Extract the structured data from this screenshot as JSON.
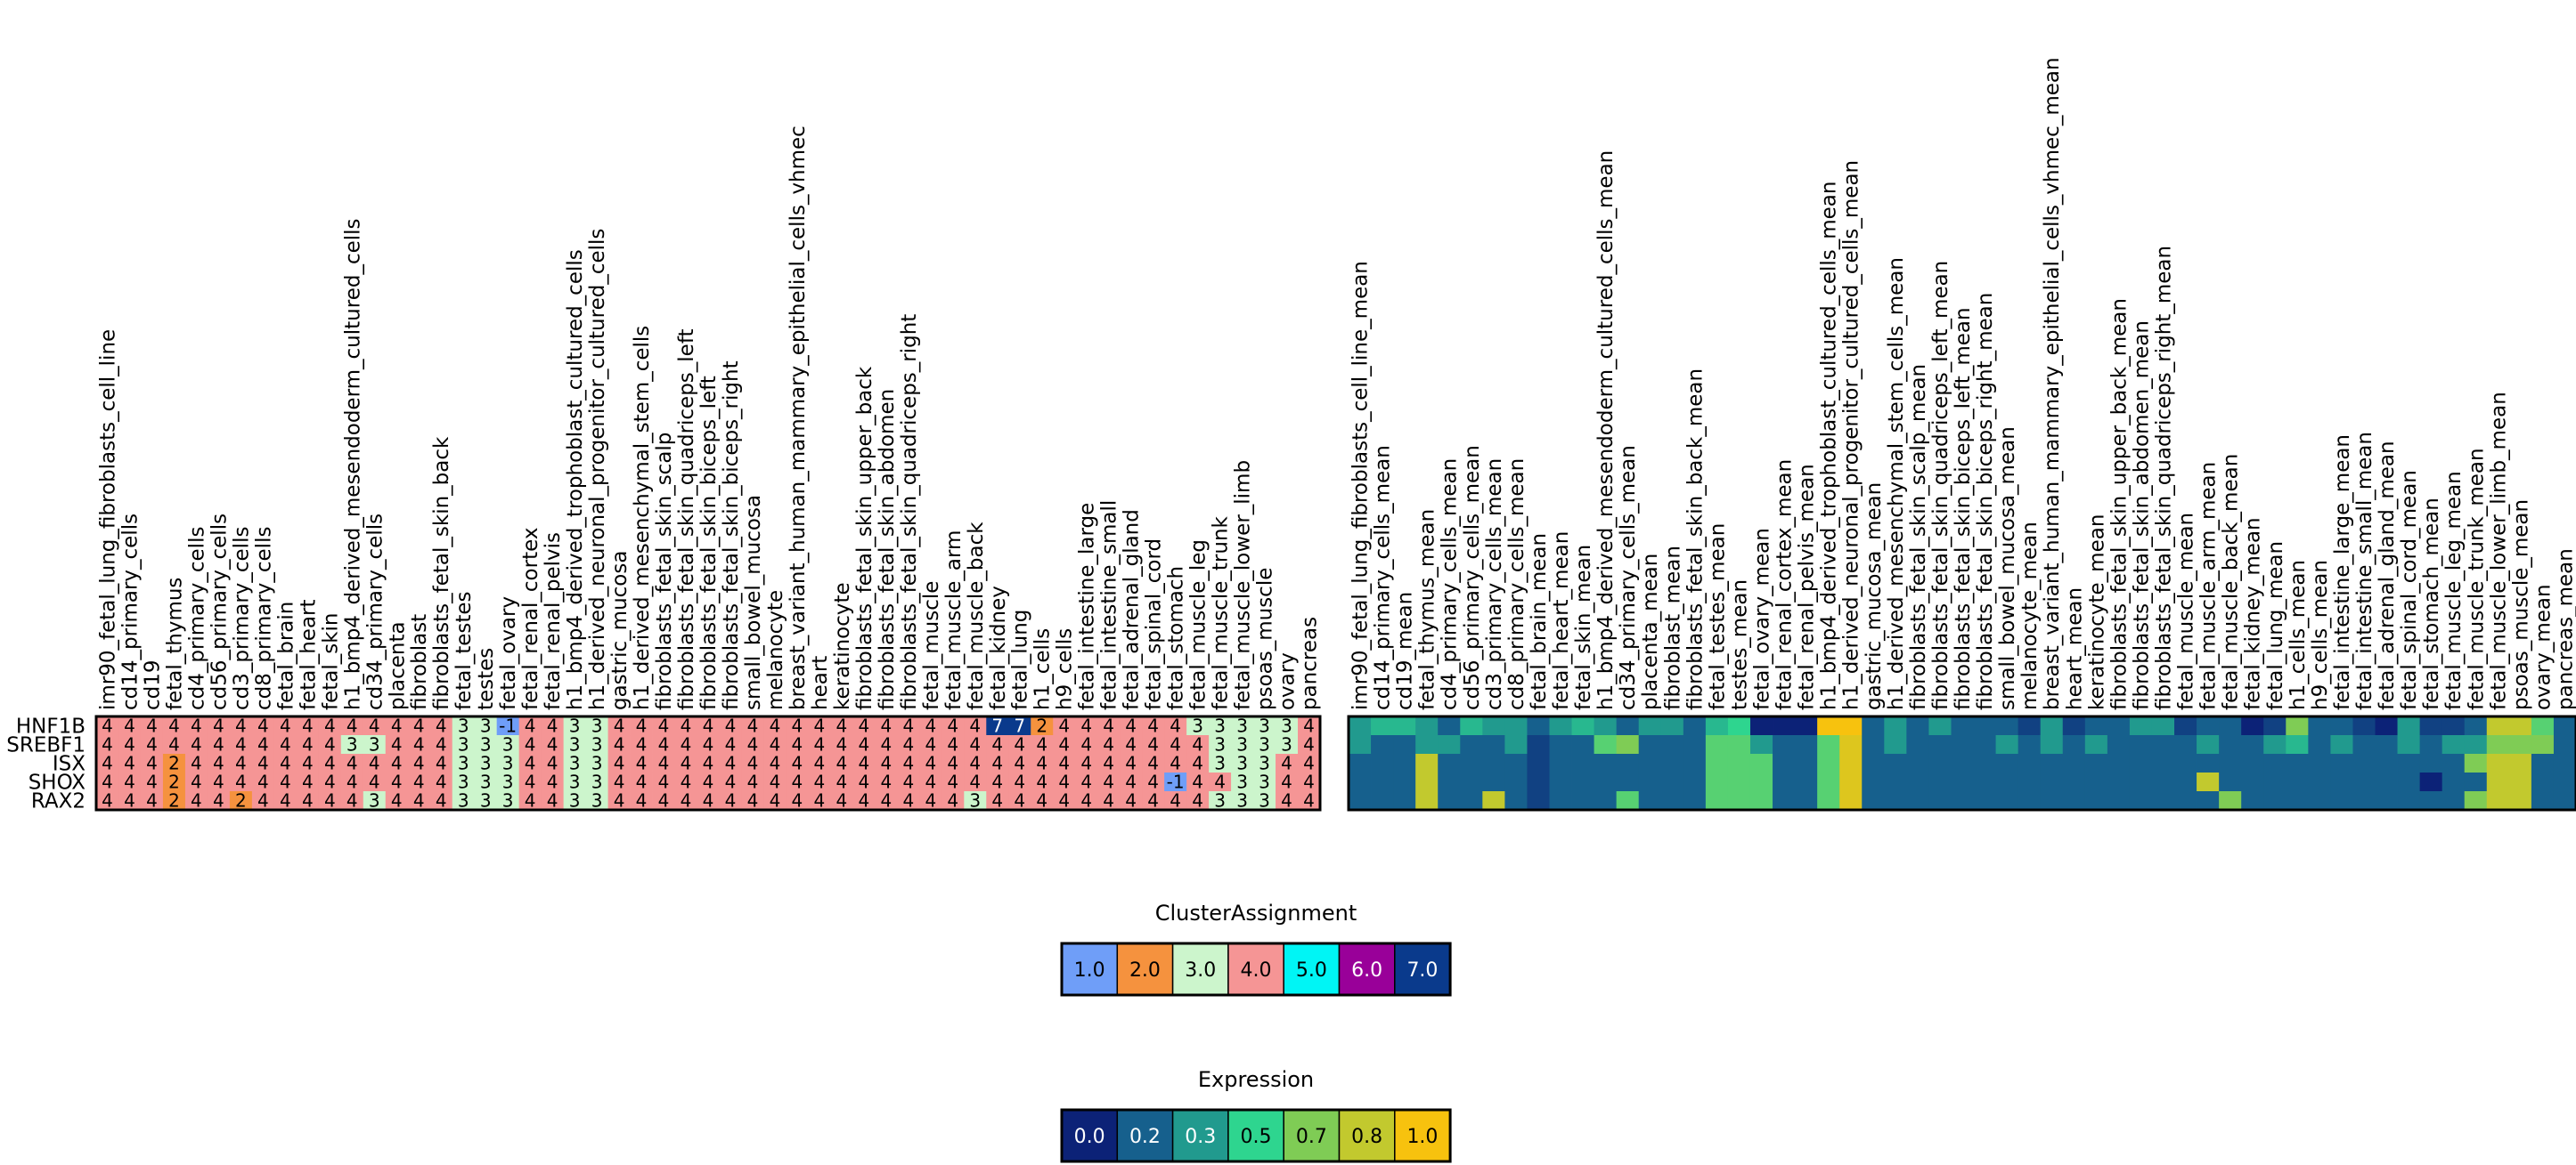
{
  "chart_data": [
    {
      "type": "heatmap",
      "rows": [
        "HNF1B",
        "SREBF1",
        "ISX",
        "SHOX",
        "RAX2"
      ],
      "columns": [
        "imr90_fetal_lung_fibroblasts_cell_line",
        "cd14_primary_cells",
        "cd19",
        "fetal_thymus",
        "cd4_primary_cells",
        "cd56_primary_cells",
        "cd3_primary_cells",
        "cd8_primary_cells",
        "fetal_brain",
        "fetal_heart",
        "fetal_skin",
        "h1_bmp4_derived_mesendoderm_cultured_cells",
        "cd34_primary_cells",
        "placenta",
        "fibroblast",
        "fibroblasts_fetal_skin_back",
        "fetal_testes",
        "testes",
        "fetal_ovary",
        "fetal_renal_cortex",
        "fetal_renal_pelvis",
        "h1_bmp4_derived_trophoblast_cultured_cells",
        "h1_derived_neuronal_progenitor_cultured_cells",
        "gastric_mucosa",
        "h1_derived_mesenchymal_stem_cells",
        "fibroblasts_fetal_skin_scalp",
        "fibroblasts_fetal_skin_quadriceps_left",
        "fibroblasts_fetal_skin_biceps_left",
        "fibroblasts_fetal_skin_biceps_right",
        "small_bowel_mucosa",
        "melanocyte",
        "breast_variant_human_mammary_epithelial_cells_vhmec",
        "heart",
        "keratinocyte",
        "fibroblasts_fetal_skin_upper_back",
        "fibroblasts_fetal_skin_abdomen",
        "fibroblasts_fetal_skin_quadriceps_right",
        "fetal_muscle",
        "fetal_muscle_arm",
        "fetal_muscle_back",
        "fetal_kidney",
        "fetal_lung",
        "h1_cells",
        "h9_cells",
        "fetal_intestine_large",
        "fetal_intestine_small",
        "fetal_adrenal_gland",
        "fetal_spinal_cord",
        "fetal_stomach",
        "fetal_muscle_leg",
        "fetal_muscle_trunk",
        "fetal_muscle_lower_limb",
        "psoas_muscle",
        "ovary",
        "pancreas"
      ],
      "values": [
        [
          4,
          4,
          4,
          4,
          4,
          4,
          4,
          4,
          4,
          4,
          4,
          4,
          4,
          4,
          4,
          4,
          3,
          3,
          -1,
          4,
          4,
          3,
          3,
          4,
          4,
          4,
          4,
          4,
          4,
          4,
          4,
          4,
          4,
          4,
          4,
          4,
          4,
          4,
          4,
          4,
          7,
          7,
          2,
          4,
          4,
          4,
          4,
          4,
          4,
          3,
          3,
          3,
          3,
          3,
          4
        ],
        [
          4,
          4,
          4,
          4,
          4,
          4,
          4,
          4,
          4,
          4,
          4,
          3,
          3,
          4,
          4,
          4,
          3,
          3,
          3,
          4,
          4,
          3,
          3,
          4,
          4,
          4,
          4,
          4,
          4,
          4,
          4,
          4,
          4,
          4,
          4,
          4,
          4,
          4,
          4,
          4,
          4,
          4,
          4,
          4,
          4,
          4,
          4,
          4,
          4,
          4,
          3,
          3,
          3,
          3,
          4
        ],
        [
          4,
          4,
          4,
          2,
          4,
          4,
          4,
          4,
          4,
          4,
          4,
          4,
          4,
          4,
          4,
          4,
          3,
          3,
          3,
          4,
          4,
          3,
          3,
          4,
          4,
          4,
          4,
          4,
          4,
          4,
          4,
          4,
          4,
          4,
          4,
          4,
          4,
          4,
          4,
          4,
          4,
          4,
          4,
          4,
          4,
          4,
          4,
          4,
          4,
          4,
          3,
          3,
          3,
          4,
          4
        ],
        [
          4,
          4,
          4,
          2,
          4,
          4,
          4,
          4,
          4,
          4,
          4,
          4,
          4,
          4,
          4,
          4,
          3,
          3,
          3,
          4,
          4,
          3,
          3,
          4,
          4,
          4,
          4,
          4,
          4,
          4,
          4,
          4,
          4,
          4,
          4,
          4,
          4,
          4,
          4,
          4,
          4,
          4,
          4,
          4,
          4,
          4,
          4,
          4,
          -1,
          4,
          4,
          3,
          3,
          4,
          4
        ],
        [
          4,
          4,
          4,
          2,
          4,
          4,
          2,
          4,
          4,
          4,
          4,
          4,
          3,
          4,
          4,
          4,
          3,
          3,
          3,
          4,
          4,
          3,
          3,
          4,
          4,
          4,
          4,
          4,
          4,
          4,
          4,
          4,
          4,
          4,
          4,
          4,
          4,
          4,
          4,
          3,
          4,
          4,
          4,
          4,
          4,
          4,
          4,
          4,
          4,
          4,
          3,
          3,
          3,
          4,
          4
        ]
      ]
    },
    {
      "type": "heatmap",
      "rows": [
        "HNF1B",
        "SREBF1",
        "ISX",
        "SHOX",
        "RAX2"
      ],
      "columns": [
        "imr90_fetal_lung_fibroblasts_cell_line_mean",
        "cd14_primary_cells_mean",
        "cd19_mean",
        "fetal_thymus_mean",
        "cd4_primary_cells_mean",
        "cd56_primary_cells_mean",
        "cd3_primary_cells_mean",
        "cd8_primary_cells_mean",
        "fetal_brain_mean",
        "fetal_heart_mean",
        "fetal_skin_mean",
        "h1_bmp4_derived_mesendoderm_cultured_cells_mean",
        "cd34_primary_cells_mean",
        "placenta_mean",
        "fibroblast_mean",
        "fibroblasts_fetal_skin_back_mean",
        "fetal_testes_mean",
        "testes_mean",
        "fetal_ovary_mean",
        "fetal_renal_cortex_mean",
        "fetal_renal_pelvis_mean",
        "h1_bmp4_derived_trophoblast_cultured_cells_mean",
        "h1_derived_neuronal_progenitor_cultured_cells_mean",
        "gastric_mucosa_mean",
        "h1_derived_mesenchymal_stem_cells_mean",
        "fibroblasts_fetal_skin_scalp_mean",
        "fibroblasts_fetal_skin_quadriceps_left_mean",
        "fibroblasts_fetal_skin_biceps_left_mean",
        "fibroblasts_fetal_skin_biceps_right_mean",
        "small_bowel_mucosa_mean",
        "melanocyte_mean",
        "breast_variant_human_mammary_epithelial_cells_vhmec_mean",
        "heart_mean",
        "keratinocyte_mean",
        "fibroblasts_fetal_skin_upper_back_mean",
        "fibroblasts_fetal_skin_abdomen_mean",
        "fibroblasts_fetal_skin_quadriceps_right_mean",
        "fetal_muscle_mean",
        "fetal_muscle_arm_mean",
        "fetal_muscle_back_mean",
        "fetal_kidney_mean",
        "fetal_lung_mean",
        "h1_cells_mean",
        "h9_cells_mean",
        "fetal_intestine_large_mean",
        "fetal_intestine_small_mean",
        "fetal_adrenal_gland_mean",
        "fetal_spinal_cord_mean",
        "fetal_stomach_mean",
        "fetal_muscle_leg_mean",
        "fetal_muscle_trunk_mean",
        "fetal_muscle_lower_limb_mean",
        "psoas_muscle_mean",
        "ovary_mean",
        "pancreas_mean"
      ],
      "values": [
        [
          0.3,
          0.4,
          0.4,
          0.3,
          0.2,
          0.4,
          0.3,
          0.3,
          0.2,
          0.3,
          0.4,
          0.3,
          0.2,
          0.3,
          0.3,
          0.2,
          0.4,
          0.5,
          0.0,
          0.0,
          0.0,
          1.0,
          1.0,
          0.2,
          0.3,
          0.2,
          0.3,
          0.2,
          0.2,
          0.2,
          0.1,
          0.3,
          0.1,
          0.2,
          0.2,
          0.3,
          0.3,
          0.1,
          0.2,
          0.2,
          0.0,
          0.1,
          0.7,
          0.2,
          0.2,
          0.1,
          0.0,
          0.3,
          0.1,
          0.1,
          0.2,
          0.8,
          0.8,
          0.6,
          0.2
        ],
        [
          0.3,
          0.2,
          0.2,
          0.3,
          0.3,
          0.2,
          0.2,
          0.3,
          0.1,
          0.2,
          0.2,
          0.6,
          0.7,
          0.2,
          0.2,
          0.2,
          0.6,
          0.6,
          0.3,
          0.2,
          0.2,
          0.6,
          0.9,
          0.2,
          0.3,
          0.2,
          0.2,
          0.2,
          0.2,
          0.3,
          0.2,
          0.3,
          0.2,
          0.3,
          0.2,
          0.2,
          0.2,
          0.2,
          0.3,
          0.2,
          0.2,
          0.3,
          0.4,
          0.2,
          0.3,
          0.2,
          0.2,
          0.3,
          0.2,
          0.3,
          0.3,
          0.7,
          0.7,
          0.7,
          0.2
        ],
        [
          0.2,
          0.2,
          0.2,
          0.8,
          0.2,
          0.2,
          0.2,
          0.2,
          0.1,
          0.2,
          0.2,
          0.2,
          0.2,
          0.2,
          0.2,
          0.2,
          0.6,
          0.6,
          0.6,
          0.2,
          0.2,
          0.6,
          0.9,
          0.2,
          0.2,
          0.2,
          0.2,
          0.2,
          0.2,
          0.2,
          0.2,
          0.2,
          0.2,
          0.2,
          0.2,
          0.2,
          0.2,
          0.2,
          0.2,
          0.2,
          0.2,
          0.2,
          0.2,
          0.2,
          0.2,
          0.2,
          0.2,
          0.2,
          0.2,
          0.2,
          0.7,
          0.8,
          0.8,
          0.2,
          0.2
        ],
        [
          0.2,
          0.2,
          0.2,
          0.8,
          0.2,
          0.2,
          0.2,
          0.2,
          0.1,
          0.2,
          0.2,
          0.2,
          0.2,
          0.2,
          0.2,
          0.2,
          0.6,
          0.6,
          0.6,
          0.2,
          0.2,
          0.6,
          0.9,
          0.2,
          0.2,
          0.2,
          0.2,
          0.2,
          0.2,
          0.2,
          0.2,
          0.2,
          0.2,
          0.2,
          0.2,
          0.2,
          0.2,
          0.2,
          0.8,
          0.2,
          0.2,
          0.2,
          0.2,
          0.2,
          0.2,
          0.2,
          0.2,
          0.2,
          0.0,
          0.2,
          0.2,
          0.8,
          0.8,
          0.2,
          0.2
        ],
        [
          0.2,
          0.2,
          0.2,
          0.8,
          0.2,
          0.2,
          0.8,
          0.2,
          0.1,
          0.2,
          0.2,
          0.2,
          0.6,
          0.2,
          0.2,
          0.2,
          0.6,
          0.6,
          0.6,
          0.2,
          0.2,
          0.6,
          0.9,
          0.2,
          0.2,
          0.2,
          0.2,
          0.2,
          0.2,
          0.2,
          0.2,
          0.2,
          0.2,
          0.2,
          0.2,
          0.2,
          0.2,
          0.2,
          0.2,
          0.7,
          0.2,
          0.2,
          0.2,
          0.2,
          0.2,
          0.2,
          0.2,
          0.2,
          0.2,
          0.2,
          0.7,
          0.8,
          0.8,
          0.2,
          0.2
        ]
      ]
    }
  ],
  "cluster_legend": {
    "title": "ClusterAssignment",
    "entries": [
      {
        "label": "1.0",
        "color": "#6f9ef8"
      },
      {
        "label": "2.0",
        "color": "#f5923e"
      },
      {
        "label": "3.0",
        "color": "#ccf5cc"
      },
      {
        "label": "4.0",
        "color": "#f59595"
      },
      {
        "label": "5.0",
        "color": "#00f5f5"
      },
      {
        "label": "6.0",
        "color": "#990099"
      },
      {
        "label": "7.0",
        "color": "#0a3a8c"
      }
    ]
  },
  "cluster_colors": {
    "-1": "#6f9ef8",
    "2": "#f5923e",
    "3": "#ccf5cc",
    "4": "#f59595",
    "5": "#00f5f5",
    "6": "#990099",
    "7": "#0a3a8c"
  },
  "expression_legend": {
    "title": "Expression",
    "entries": [
      {
        "label": "0.0",
        "color": "#0c2277"
      },
      {
        "label": "0.2",
        "color": "#16608d"
      },
      {
        "label": "0.3",
        "color": "#219a8e"
      },
      {
        "label": "0.5",
        "color": "#2ed58f"
      },
      {
        "label": "0.7",
        "color": "#7fcc55"
      },
      {
        "label": "0.8",
        "color": "#c2c92e"
      },
      {
        "label": "1.0",
        "color": "#f7c20e"
      }
    ]
  }
}
